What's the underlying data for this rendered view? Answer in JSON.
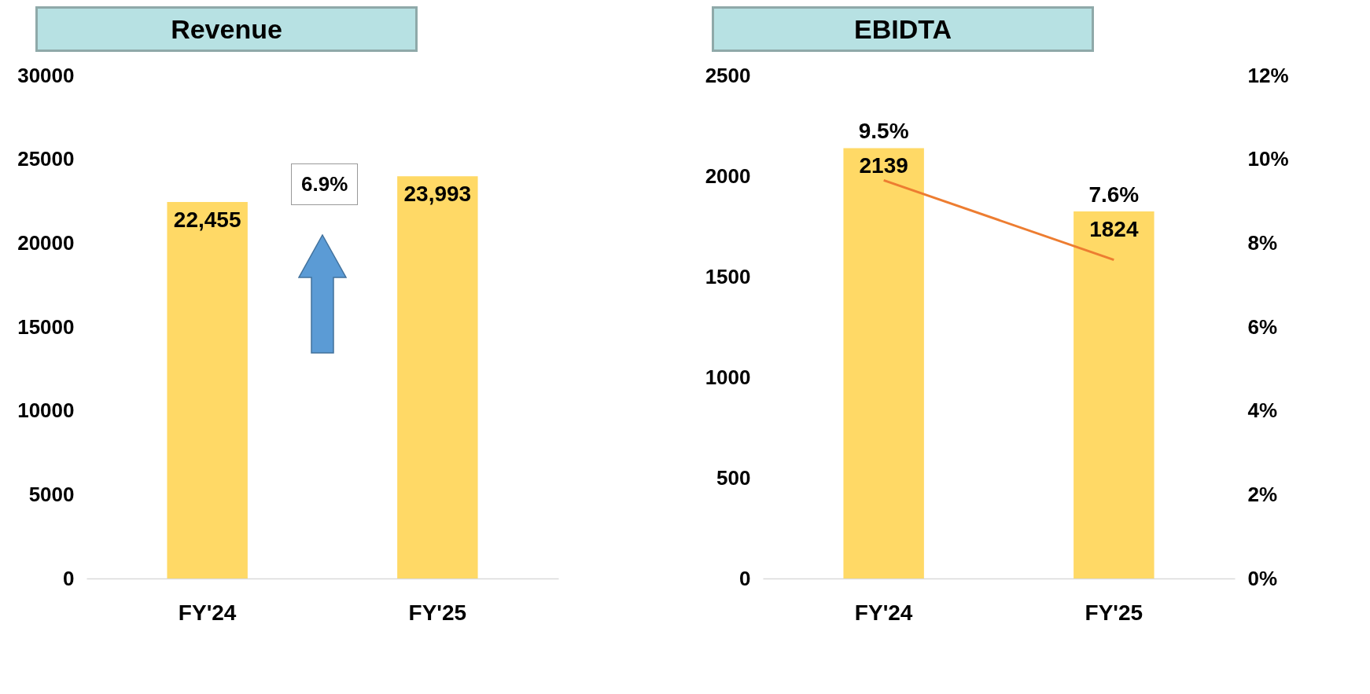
{
  "chart_data": [
    {
      "type": "bar",
      "title": "Revenue",
      "categories": [
        "FY'24",
        "FY'25"
      ],
      "values": [
        22455,
        23993
      ],
      "value_labels": [
        "22,455",
        "23,993"
      ],
      "color": "#ffd966",
      "ylim": [
        0,
        30000
      ],
      "yticks": [
        0,
        5000,
        10000,
        15000,
        20000,
        25000,
        30000
      ],
      "annotations": [
        "6.9%"
      ]
    },
    {
      "type": "bar",
      "title": "EBIDTA",
      "categories": [
        "FY'24",
        "FY'25"
      ],
      "series": [
        {
          "type": "bar",
          "color": "#ffd966",
          "values": [
            2139,
            1824
          ],
          "value_labels": [
            "2139",
            "1824"
          ]
        },
        {
          "type": "line",
          "axis": "y2",
          "color": "#ed7d31",
          "values": [
            9.5,
            7.6
          ],
          "value_labels": [
            "9.5%",
            "7.6%"
          ]
        }
      ],
      "ylim": [
        0,
        2500
      ],
      "yticks": [
        0,
        500,
        1000,
        1500,
        2000,
        2500
      ],
      "y2lim": [
        0,
        12
      ],
      "y2ticks": [
        {
          "value": 0,
          "label": "0%"
        },
        {
          "value": 2,
          "label": "2%"
        },
        {
          "value": 4,
          "label": "4%"
        },
        {
          "value": 6,
          "label": "6%"
        },
        {
          "value": 8,
          "label": "8%"
        },
        {
          "value": 10,
          "label": "10%"
        },
        {
          "value": 12,
          "label": "12%"
        }
      ]
    }
  ]
}
